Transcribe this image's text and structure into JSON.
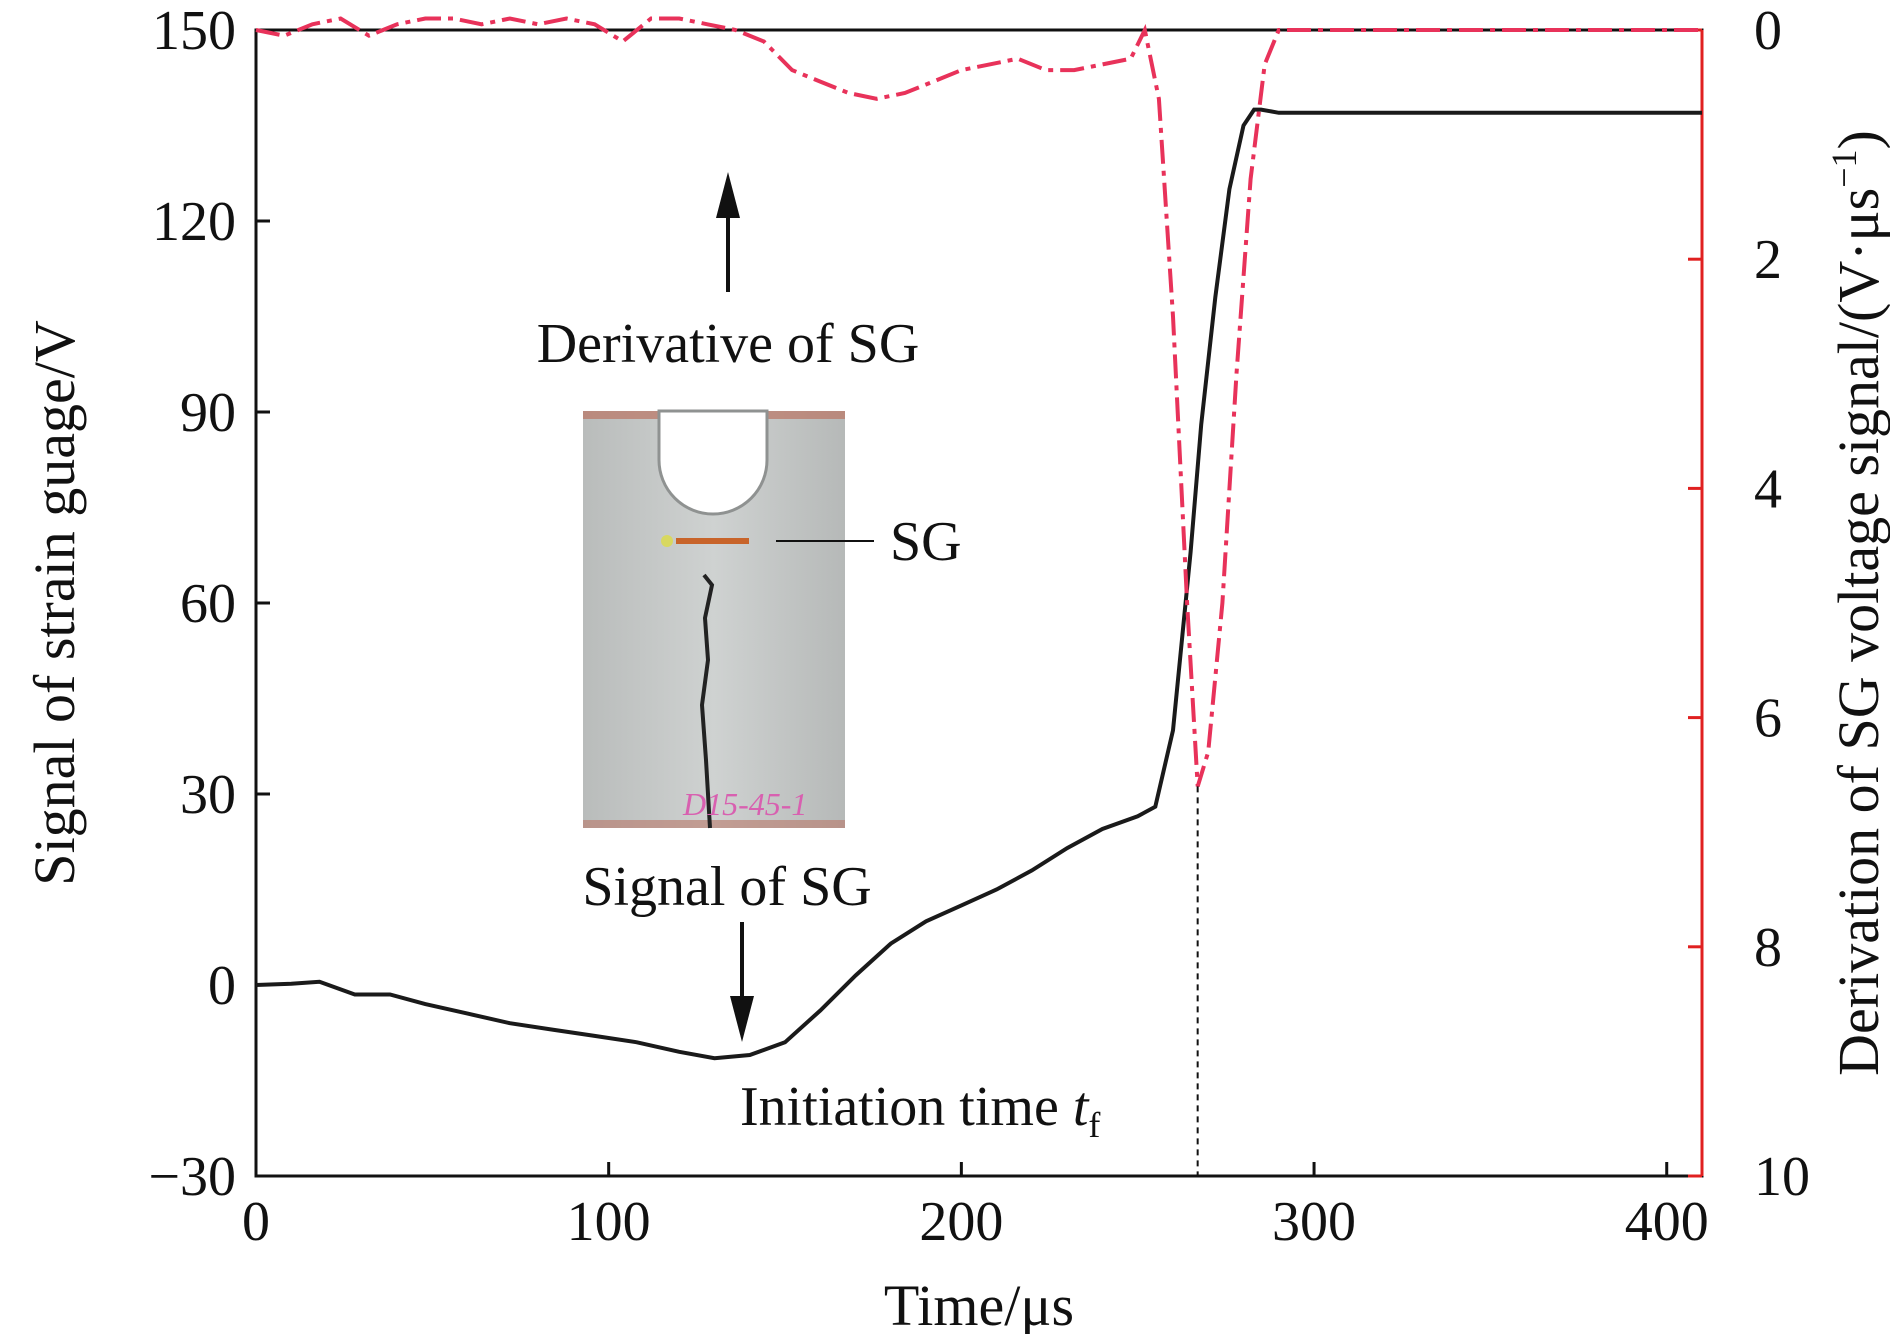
{
  "chart_data": {
    "type": "line",
    "xlabel": "Time/μs",
    "ylabel_left": "Signal of strain guage/V",
    "ylabel_right": "Derivation of SG voltage signal/(V·μs",
    "ylabel_right_sup": "−1",
    "ylabel_right_close": ")",
    "xlim": [
      0,
      410
    ],
    "ylim_left": [
      -30,
      150
    ],
    "ylim_right": [
      0,
      10
    ],
    "right_axis_inverted": true,
    "x_ticks": [
      0,
      100,
      200,
      300,
      400
    ],
    "x_tick_labels": [
      "0",
      "100",
      "200",
      "300",
      "400"
    ],
    "y_left_ticks": [
      -30,
      0,
      30,
      60,
      90,
      120,
      150
    ],
    "y_left_tick_labels": [
      "−30",
      "0",
      "30",
      "60",
      "90",
      "120",
      "150"
    ],
    "y_right_ticks": [
      0,
      2,
      4,
      6,
      8,
      10
    ],
    "y_right_tick_labels": [
      "0",
      "2",
      "4",
      "6",
      "8",
      "10"
    ],
    "colors": {
      "signal": "#1a1a1a",
      "derivative": "#e8325a",
      "right_axis": "#e02020",
      "left_axis": "#111111"
    },
    "series": [
      {
        "axis": "left",
        "style": "solid",
        "x": [
          0,
          10,
          18,
          28,
          38,
          48,
          60,
          72,
          84,
          96,
          108,
          120,
          130,
          140,
          150,
          160,
          170,
          180,
          190,
          200,
          210,
          220,
          230,
          240,
          250,
          255,
          260,
          265,
          268,
          272,
          276,
          280,
          283,
          285,
          290,
          300,
          320,
          350,
          380,
          410
        ],
        "y": [
          0,
          0.2,
          0.5,
          -1.5,
          -1.5,
          -3,
          -4.5,
          -6,
          -7,
          -8,
          -9,
          -10.5,
          -11.5,
          -11,
          -9,
          -4,
          1.5,
          6.5,
          10,
          12.5,
          15,
          18,
          21.5,
          24.5,
          26.5,
          28,
          40,
          68,
          88,
          108,
          125,
          135,
          137.5,
          137.5,
          137,
          137,
          137,
          137,
          137,
          137
        ]
      },
      {
        "axis": "right",
        "style": "dashdot",
        "x": [
          0,
          8,
          16,
          24,
          32,
          40,
          48,
          56,
          64,
          72,
          80,
          88,
          96,
          104,
          112,
          120,
          128,
          136,
          144,
          152,
          160,
          168,
          176,
          184,
          192,
          200,
          208,
          216,
          224,
          232,
          240,
          248,
          252,
          256,
          260,
          264,
          267,
          270,
          274,
          278,
          282,
          286,
          290,
          300,
          320,
          350,
          380,
          410
        ],
        "y": [
          0,
          0.05,
          -0.05,
          -0.1,
          0.05,
          -0.05,
          -0.1,
          -0.1,
          -0.05,
          -0.1,
          -0.05,
          -0.1,
          -0.05,
          0.1,
          -0.1,
          -0.1,
          -0.05,
          0,
          0.1,
          0.35,
          0.45,
          0.55,
          0.6,
          0.55,
          0.45,
          0.35,
          0.3,
          0.25,
          0.35,
          0.35,
          0.3,
          0.25,
          0,
          0.6,
          2.5,
          5.0,
          6.6,
          6.3,
          5.0,
          3.0,
          1.3,
          0.3,
          0,
          0,
          0,
          0,
          0,
          0
        ]
      }
    ],
    "annotations": {
      "derivative_label": "Derivative of SG",
      "signal_label": "Signal of SG",
      "sg_label": "SG",
      "initiation_label": "Initiation time ",
      "initiation_var": "t",
      "initiation_sub": "f",
      "initiation_x": 267,
      "photo_text": "D15-45-1"
    }
  }
}
